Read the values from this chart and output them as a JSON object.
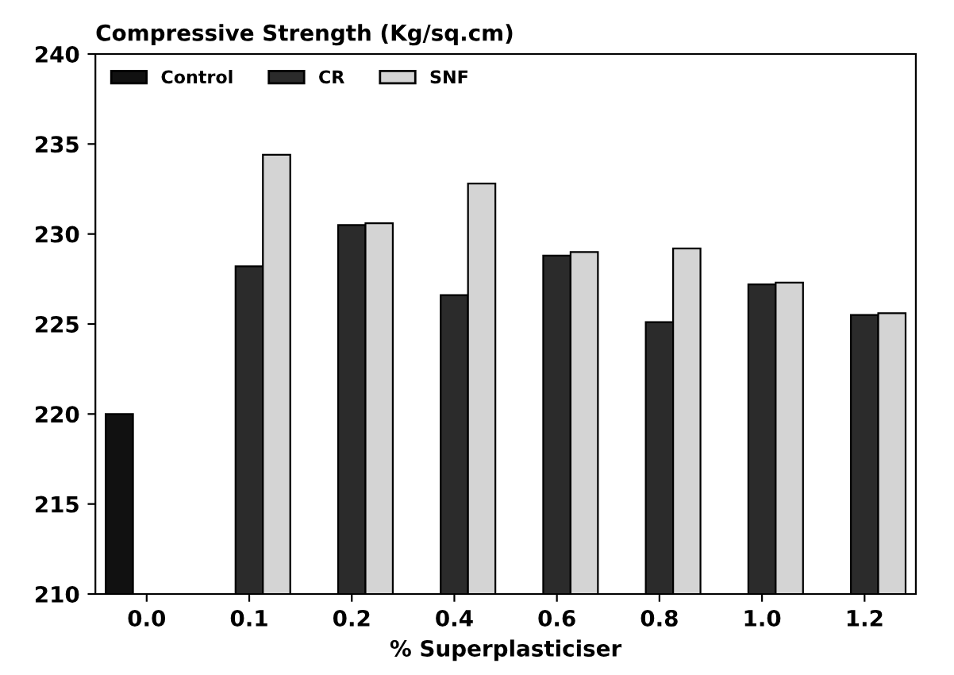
{
  "chart_data": {
    "type": "bar",
    "title": "Compressive Strength (Kg/sq.cm)",
    "xlabel": "% Superplasticiser",
    "categories": [
      "0.0",
      "0.1",
      "0.2",
      "0.4",
      "0.6",
      "0.8",
      "1.0",
      "1.2"
    ],
    "series": [
      {
        "name": "Control",
        "color": "#111111",
        "values": [
          220,
          null,
          null,
          null,
          null,
          null,
          null,
          null
        ]
      },
      {
        "name": "CR",
        "color": "#2b2b2b",
        "values": [
          null,
          228.2,
          230.5,
          226.6,
          228.8,
          225.1,
          227.2,
          225.5
        ]
      },
      {
        "name": "SNF",
        "color": "#d4d4d4",
        "values": [
          null,
          234.4,
          230.6,
          232.8,
          229.0,
          229.2,
          227.3,
          225.6
        ]
      }
    ],
    "ylim": [
      210,
      240
    ],
    "yticks": [
      210,
      215,
      220,
      225,
      230,
      235,
      240
    ],
    "grid": false,
    "legend": "top left"
  }
}
